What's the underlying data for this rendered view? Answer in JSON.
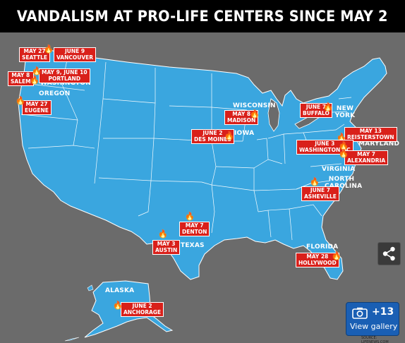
{
  "title": "VANDALISM AT PRO-LIFE CENTERS SINCE MAY 2",
  "colors": {
    "land": "#3aa6df",
    "background": "#6b6b6b",
    "tag": "#d9201a",
    "title_bar": "#000000",
    "flame": "#ff6a00"
  },
  "state_labels": {
    "washington": "WASHINGTON",
    "oregon": "OREGON",
    "wisconsin": "WISCONSIN",
    "iowa": "IOWA",
    "new_york": "NEW YORK",
    "maryland": "MARYLAND",
    "virginia": "VIRGINIA",
    "north_carolina": "NORTH CAROLINA",
    "texas": "TEXAS",
    "florida": "FLORIDA",
    "alaska": "ALASKA"
  },
  "incidents": [
    {
      "date": "MAY 27",
      "city": "SEATTLE"
    },
    {
      "date": "JUNE 9",
      "city": "VANCOUVER"
    },
    {
      "date": "MAY 8",
      "city": "SALEM"
    },
    {
      "date": "MAY 9, JUNE 10",
      "city": "PORTLAND"
    },
    {
      "date": "MAY 27",
      "city": "EUGENE"
    },
    {
      "date": "MAY 8",
      "city": "MADISON"
    },
    {
      "date": "JUNE 2",
      "city": "DES MOINES"
    },
    {
      "date": "JUNE 7",
      "city": "BUFFALO"
    },
    {
      "date": "MAY 13",
      "city": "REISTERSTOWN"
    },
    {
      "date": "JUNE 3",
      "city": "WASHINGTON DC"
    },
    {
      "date": "MAY 7",
      "city": "ALEXANDRIA"
    },
    {
      "date": "JUNE 7",
      "city": "ASHEVILLE"
    },
    {
      "date": "MAY 7",
      "city": "DENTON"
    },
    {
      "date": "MAY 3",
      "city": "AUSTIN"
    },
    {
      "date": "MAY 28",
      "city": "HOLLYWOOD"
    },
    {
      "date": "JUNE 2",
      "city": "ANCHORAGE"
    }
  ],
  "source": "SOURCE: LIFENEWS.COM",
  "gallery": {
    "count": "+13",
    "label": "View gallery"
  },
  "icons": {
    "share": "share-icon",
    "camera": "camera-icon",
    "fire": "fire-icon"
  }
}
